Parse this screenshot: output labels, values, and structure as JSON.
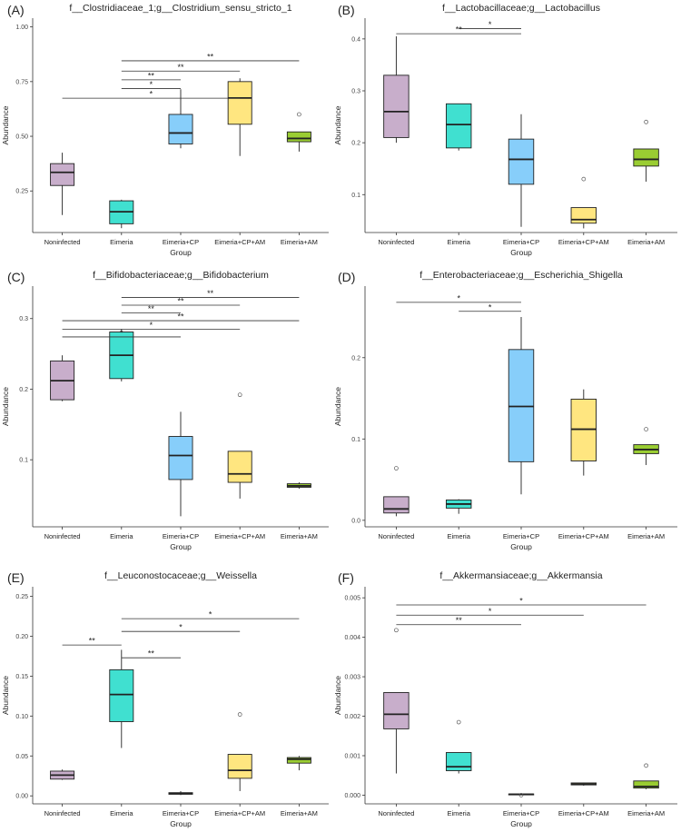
{
  "figure": {
    "ylabel": "Abundance",
    "xlabel": "Group",
    "groups": [
      "Noninfected",
      "Eimeria",
      "Eimeria+CP",
      "Eimeria+CP+AM",
      "Eimeria+AM"
    ],
    "group_colors": [
      "#C8AECB",
      "#40E0D0",
      "#87CEFA",
      "#FFE680",
      "#9ACD32"
    ]
  },
  "chart_data": [
    {
      "type": "box",
      "panel": "(A)",
      "title": "f__Clostridiaceae_1;g__Clostridium_sensu_stricto_1",
      "xlabel": "Group",
      "ylabel": "Abundance",
      "ylim": [
        0.06,
        1.04
      ],
      "ticks": [
        0.25,
        0.5,
        0.75,
        1.0
      ],
      "tick_labels": [
        "0.25",
        "0.50",
        "0.75",
        "1.00"
      ],
      "boxes": [
        {
          "group": "Noninfected",
          "min": 0.14,
          "q1": 0.275,
          "median": 0.335,
          "q3": 0.375,
          "max": 0.425,
          "outliers": []
        },
        {
          "group": "Eimeria",
          "min": 0.08,
          "q1": 0.1,
          "median": 0.155,
          "q3": 0.205,
          "max": 0.21,
          "outliers": []
        },
        {
          "group": "Eimeria+CP",
          "min": 0.445,
          "q1": 0.465,
          "median": 0.515,
          "q3": 0.6,
          "max": 0.715,
          "outliers": []
        },
        {
          "group": "Eimeria+CP+AM",
          "min": 0.41,
          "q1": 0.555,
          "median": 0.675,
          "q3": 0.75,
          "max": 0.765,
          "outliers": []
        },
        {
          "group": "Eimeria+AM",
          "min": 0.43,
          "q1": 0.475,
          "median": 0.49,
          "q3": 0.52,
          "max": 0.52,
          "outliers": [
            0.6
          ]
        }
      ],
      "significance": [
        {
          "from": 1,
          "to": 4,
          "y": 0.845,
          "label": "**"
        },
        {
          "from": 1,
          "to": 3,
          "y": 0.798,
          "label": "**"
        },
        {
          "from": 1,
          "to": 2,
          "y": 0.758,
          "label": "**"
        },
        {
          "from": 1,
          "to": 2,
          "y": 0.718,
          "label": "*"
        },
        {
          "from": 0,
          "to": 3,
          "y": 0.674,
          "label": "*"
        }
      ]
    },
    {
      "type": "box",
      "panel": "(B)",
      "title": "f__Lactobacillaceae;g__Lactobacillus",
      "xlabel": "Group",
      "ylabel": "Abundance",
      "ylim": [
        0.027,
        0.44
      ],
      "ticks": [
        0.1,
        0.2,
        0.3,
        0.4
      ],
      "tick_labels": [
        "0.1",
        "0.2",
        "0.3",
        "0.4"
      ],
      "boxes": [
        {
          "group": "Noninfected",
          "min": 0.2,
          "q1": 0.21,
          "median": 0.26,
          "q3": 0.33,
          "max": 0.405,
          "outliers": []
        },
        {
          "group": "Eimeria",
          "min": 0.185,
          "q1": 0.19,
          "median": 0.235,
          "q3": 0.275,
          "max": 0.275,
          "outliers": []
        },
        {
          "group": "Eimeria+CP",
          "min": 0.038,
          "q1": 0.12,
          "median": 0.168,
          "q3": 0.207,
          "max": 0.255,
          "outliers": []
        },
        {
          "group": "Eimeria+CP+AM",
          "min": 0.035,
          "q1": 0.045,
          "median": 0.052,
          "q3": 0.075,
          "max": 0.075,
          "outliers": [
            0.13
          ]
        },
        {
          "group": "Eimeria+AM",
          "min": 0.125,
          "q1": 0.155,
          "median": 0.168,
          "q3": 0.188,
          "max": 0.188,
          "outliers": [
            0.24
          ]
        }
      ],
      "significance": [
        {
          "from": 1,
          "to": 2,
          "y": 0.42,
          "label": "*"
        },
        {
          "from": 0,
          "to": 2,
          "y": 0.41,
          "label": "**"
        }
      ]
    },
    {
      "type": "box",
      "panel": "(C)",
      "title": "f__Bifidobacteriaceae;g__Bifidobacterium",
      "xlabel": "Group",
      "ylabel": "Abundance",
      "ylim": [
        0.005,
        0.346
      ],
      "ticks": [
        0.1,
        0.2,
        0.3
      ],
      "tick_labels": [
        "0.1",
        "0.2",
        "0.3"
      ],
      "boxes": [
        {
          "group": "Noninfected",
          "min": 0.183,
          "q1": 0.185,
          "median": 0.212,
          "q3": 0.24,
          "max": 0.248,
          "outliers": []
        },
        {
          "group": "Eimeria",
          "min": 0.211,
          "q1": 0.215,
          "median": 0.248,
          "q3": 0.281,
          "max": 0.285,
          "outliers": []
        },
        {
          "group": "Eimeria+CP",
          "min": 0.02,
          "q1": 0.072,
          "median": 0.106,
          "q3": 0.133,
          "max": 0.168,
          "outliers": []
        },
        {
          "group": "Eimeria+CP+AM",
          "min": 0.045,
          "q1": 0.068,
          "median": 0.08,
          "q3": 0.112,
          "max": 0.112,
          "outliers": [
            0.192
          ]
        },
        {
          "group": "Eimeria+AM",
          "min": 0.059,
          "q1": 0.061,
          "median": 0.063,
          "q3": 0.066,
          "max": 0.068,
          "outliers": []
        }
      ],
      "significance": [
        {
          "from": 1,
          "to": 4,
          "y": 0.33,
          "label": "**"
        },
        {
          "from": 1,
          "to": 3,
          "y": 0.319,
          "label": "**"
        },
        {
          "from": 1,
          "to": 2,
          "y": 0.308,
          "label": "**"
        },
        {
          "from": 0,
          "to": 4,
          "y": 0.297,
          "label": "**"
        },
        {
          "from": 0,
          "to": 3,
          "y": 0.285,
          "label": "*"
        },
        {
          "from": 0,
          "to": 2,
          "y": 0.274,
          "label": "*"
        }
      ]
    },
    {
      "type": "box",
      "panel": "(D)",
      "title": "f__Enterobacteriaceae;g__Escherichia_Shigella",
      "xlabel": "Group",
      "ylabel": "Abundance",
      "ylim": [
        -0.008,
        0.288
      ],
      "ticks": [
        0.0,
        0.1,
        0.2
      ],
      "tick_labels": [
        "0.0",
        "0.1",
        "0.2"
      ],
      "boxes": [
        {
          "group": "Noninfected",
          "min": 0.005,
          "q1": 0.009,
          "median": 0.014,
          "q3": 0.029,
          "max": 0.029,
          "outliers": [
            0.064
          ]
        },
        {
          "group": "Eimeria",
          "min": 0.008,
          "q1": 0.015,
          "median": 0.02,
          "q3": 0.025,
          "max": 0.026,
          "outliers": []
        },
        {
          "group": "Eimeria+CP",
          "min": 0.032,
          "q1": 0.072,
          "median": 0.14,
          "q3": 0.21,
          "max": 0.25,
          "outliers": []
        },
        {
          "group": "Eimeria+CP+AM",
          "min": 0.055,
          "q1": 0.073,
          "median": 0.112,
          "q3": 0.149,
          "max": 0.161,
          "outliers": []
        },
        {
          "group": "Eimeria+AM",
          "min": 0.068,
          "q1": 0.082,
          "median": 0.087,
          "q3": 0.093,
          "max": 0.093,
          "outliers": [
            0.112
          ]
        }
      ],
      "significance": [
        {
          "from": 0,
          "to": 2,
          "y": 0.268,
          "label": "*"
        },
        {
          "from": 1,
          "to": 2,
          "y": 0.257,
          "label": "*"
        }
      ]
    },
    {
      "type": "box",
      "panel": "(E)",
      "title": "f__Leuconostocaceae;g__Weissella",
      "xlabel": "Group",
      "ylabel": "Abundance",
      "ylim": [
        -0.01,
        0.262
      ],
      "ticks": [
        0.0,
        0.05,
        0.1,
        0.15,
        0.2,
        0.25
      ],
      "tick_labels": [
        "0.00",
        "0.05",
        "0.10",
        "0.15",
        "0.20",
        "0.25"
      ],
      "boxes": [
        {
          "group": "Noninfected",
          "min": 0.02,
          "q1": 0.021,
          "median": 0.026,
          "q3": 0.031,
          "max": 0.033,
          "outliers": []
        },
        {
          "group": "Eimeria",
          "min": 0.06,
          "q1": 0.093,
          "median": 0.127,
          "q3": 0.158,
          "max": 0.183,
          "outliers": []
        },
        {
          "group": "Eimeria+CP",
          "min": 0.001,
          "q1": 0.002,
          "median": 0.003,
          "q3": 0.004,
          "max": 0.006,
          "outliers": []
        },
        {
          "group": "Eimeria+CP+AM",
          "min": 0.006,
          "q1": 0.022,
          "median": 0.032,
          "q3": 0.052,
          "max": 0.052,
          "outliers": [
            0.102
          ]
        },
        {
          "group": "Eimeria+AM",
          "min": 0.032,
          "q1": 0.041,
          "median": 0.046,
          "q3": 0.048,
          "max": 0.05,
          "outliers": []
        }
      ],
      "significance": [
        {
          "from": 0,
          "to": 1,
          "y": 0.189,
          "label": "**"
        },
        {
          "from": 1,
          "to": 2,
          "y": 0.173,
          "label": "**"
        },
        {
          "from": 1,
          "to": 3,
          "y": 0.206,
          "label": "*"
        },
        {
          "from": 1,
          "to": 4,
          "y": 0.222,
          "label": "*"
        }
      ]
    },
    {
      "type": "box",
      "panel": "(F)",
      "title": "f__Akkermansiaceae;g__Akkermansia",
      "xlabel": "Group",
      "ylabel": "Abundance",
      "ylim": [
        -0.00022,
        0.00528
      ],
      "ticks": [
        0.0,
        0.001,
        0.002,
        0.003,
        0.004,
        0.005
      ],
      "tick_labels": [
        "0.000",
        "0.001",
        "0.002",
        "0.003",
        "0.004",
        "0.005"
      ],
      "boxes": [
        {
          "group": "Noninfected",
          "min": 0.00055,
          "q1": 0.00168,
          "median": 0.00205,
          "q3": 0.0026,
          "max": 0.0026,
          "outliers": [
            0.00418
          ]
        },
        {
          "group": "Eimeria",
          "min": 0.00055,
          "q1": 0.00062,
          "median": 0.00072,
          "q3": 0.00108,
          "max": 0.00108,
          "outliers": [
            0.00185
          ]
        },
        {
          "group": "Eimeria+CP",
          "min": 0.0,
          "q1": 1e-05,
          "median": 2e-05,
          "q3": 3e-05,
          "max": 3e-05,
          "outliers": [
            0.0
          ]
        },
        {
          "group": "Eimeria+CP+AM",
          "min": 0.00024,
          "q1": 0.00026,
          "median": 0.00028,
          "q3": 0.00031,
          "max": 0.00032,
          "outliers": []
        },
        {
          "group": "Eimeria+AM",
          "min": 0.00015,
          "q1": 0.00018,
          "median": 0.00022,
          "q3": 0.00036,
          "max": 0.00036,
          "outliers": [
            0.00075
          ]
        }
      ],
      "significance": [
        {
          "from": 0,
          "to": 4,
          "y": 0.00482,
          "label": "*"
        },
        {
          "from": 0,
          "to": 3,
          "y": 0.00456,
          "label": "*"
        },
        {
          "from": 0,
          "to": 2,
          "y": 0.00432,
          "label": "**"
        }
      ]
    }
  ]
}
